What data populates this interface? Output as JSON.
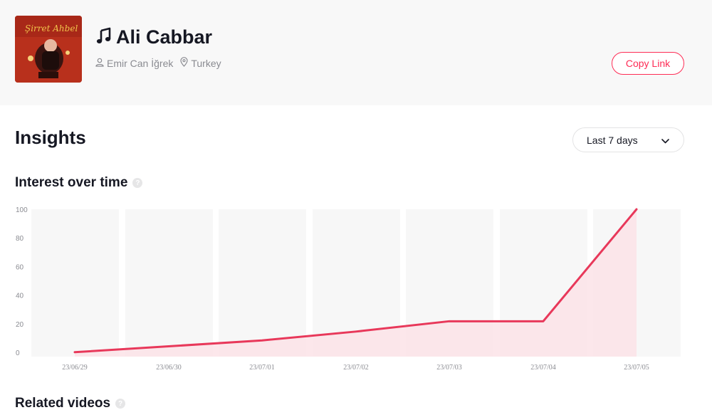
{
  "song": {
    "title": "Ali Cabbar",
    "artist": "Emir Can İğrek",
    "region": "Turkey",
    "note_icon": "music-note-icon",
    "person_icon": "person-icon",
    "pin_icon": "location-pin-icon"
  },
  "actions": {
    "copy_link_label": "Copy Link"
  },
  "insights": {
    "title": "Insights",
    "range_selected": "Last 7 days"
  },
  "interest": {
    "title": "Interest over time"
  },
  "related": {
    "title": "Related videos"
  },
  "colors": {
    "accent": "#fe2c55",
    "line": "#e8385a",
    "fill": "#fbe3e7",
    "band": "#f7f7f7"
  },
  "chart_data": {
    "type": "area",
    "x": [
      "23/06/29",
      "23/06/30",
      "23/07/01",
      "23/07/02",
      "23/07/03",
      "23/07/04",
      "23/07/05"
    ],
    "series": [
      {
        "values": [
          3,
          7,
          11,
          17,
          24,
          24,
          100
        ]
      }
    ],
    "ylim": [
      0,
      100
    ],
    "yticks": [
      "100",
      "80",
      "60",
      "40",
      "20",
      "0"
    ],
    "grid": false
  }
}
